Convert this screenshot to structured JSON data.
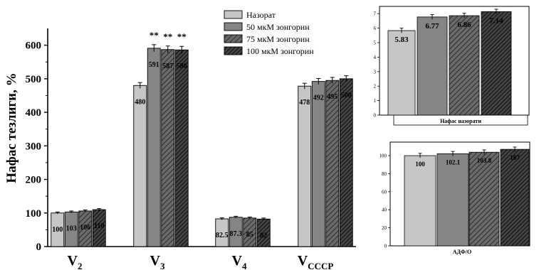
{
  "chart_data": [
    {
      "type": "bar",
      "title": "",
      "ylabel": "Нафас тезлиги, %",
      "xlabel": "",
      "categories": [
        {
          "main": "V",
          "sub": "2"
        },
        {
          "main": "V",
          "sub": "3"
        },
        {
          "main": "V",
          "sub": "4"
        },
        {
          "main": "V",
          "sub": "CCCP"
        }
      ],
      "series": [
        {
          "name": "Назорат",
          "values": [
            100,
            480,
            82.5,
            478
          ],
          "labels": [
            "100",
            "480",
            "82.5",
            "478"
          ]
        },
        {
          "name": "50 мкМ зонгорин",
          "values": [
            103,
            591,
            87.3,
            492
          ],
          "labels": [
            "103",
            "591",
            "87.3",
            "492"
          ]
        },
        {
          "name": "75 мкМ зонгорин",
          "values": [
            106,
            587,
            85,
            495
          ],
          "labels": [
            "106",
            "587",
            "85",
            "495"
          ]
        },
        {
          "name": "100 мкМ зонгорин",
          "values": [
            110,
            586,
            82,
            500
          ],
          "labels": [
            "110",
            "586",
            "82",
            "500"
          ]
        }
      ],
      "annotations": [
        {
          "category": 1,
          "series": 1,
          "text": "**"
        },
        {
          "category": 1,
          "series": 2,
          "text": "**"
        },
        {
          "category": 1,
          "series": 3,
          "text": "**"
        }
      ],
      "ylim": [
        0,
        650
      ],
      "yticks": [
        0,
        100,
        200,
        300,
        400,
        500,
        600
      ],
      "legend_position": "top-right",
      "error_bars": true
    },
    {
      "type": "bar",
      "title": "",
      "xlabel": "Нафас назорати",
      "ylabel": "",
      "categories": [
        "",
        "",
        "",
        ""
      ],
      "series": [
        {
          "name": "",
          "values": [
            5.83,
            6.77,
            6.86,
            7.14
          ],
          "labels": [
            "5.83",
            "6.77",
            "6.86",
            "7.14"
          ]
        }
      ],
      "ylim": [
        0,
        7.5
      ],
      "yticks": [
        0,
        1,
        2,
        3,
        4,
        5,
        6,
        7
      ]
    },
    {
      "type": "bar",
      "title": "",
      "xlabel": "АДФ/О",
      "ylabel": "",
      "categories": [
        "",
        "",
        "",
        ""
      ],
      "series": [
        {
          "name": "",
          "values": [
            100,
            102.1,
            103.8,
            107
          ],
          "labels": [
            "100",
            "102.1",
            "103.8",
            "107"
          ]
        }
      ],
      "ylim": [
        0,
        115
      ],
      "yticks": [
        0,
        20,
        40,
        60,
        80,
        100
      ]
    }
  ],
  "colors": {
    "series_fills": [
      "#c6c6c6",
      "#858585",
      "#5a5a5a",
      "#1c1c1c"
    ],
    "hatched_series": [
      2,
      3
    ],
    "axis": "#000000"
  }
}
